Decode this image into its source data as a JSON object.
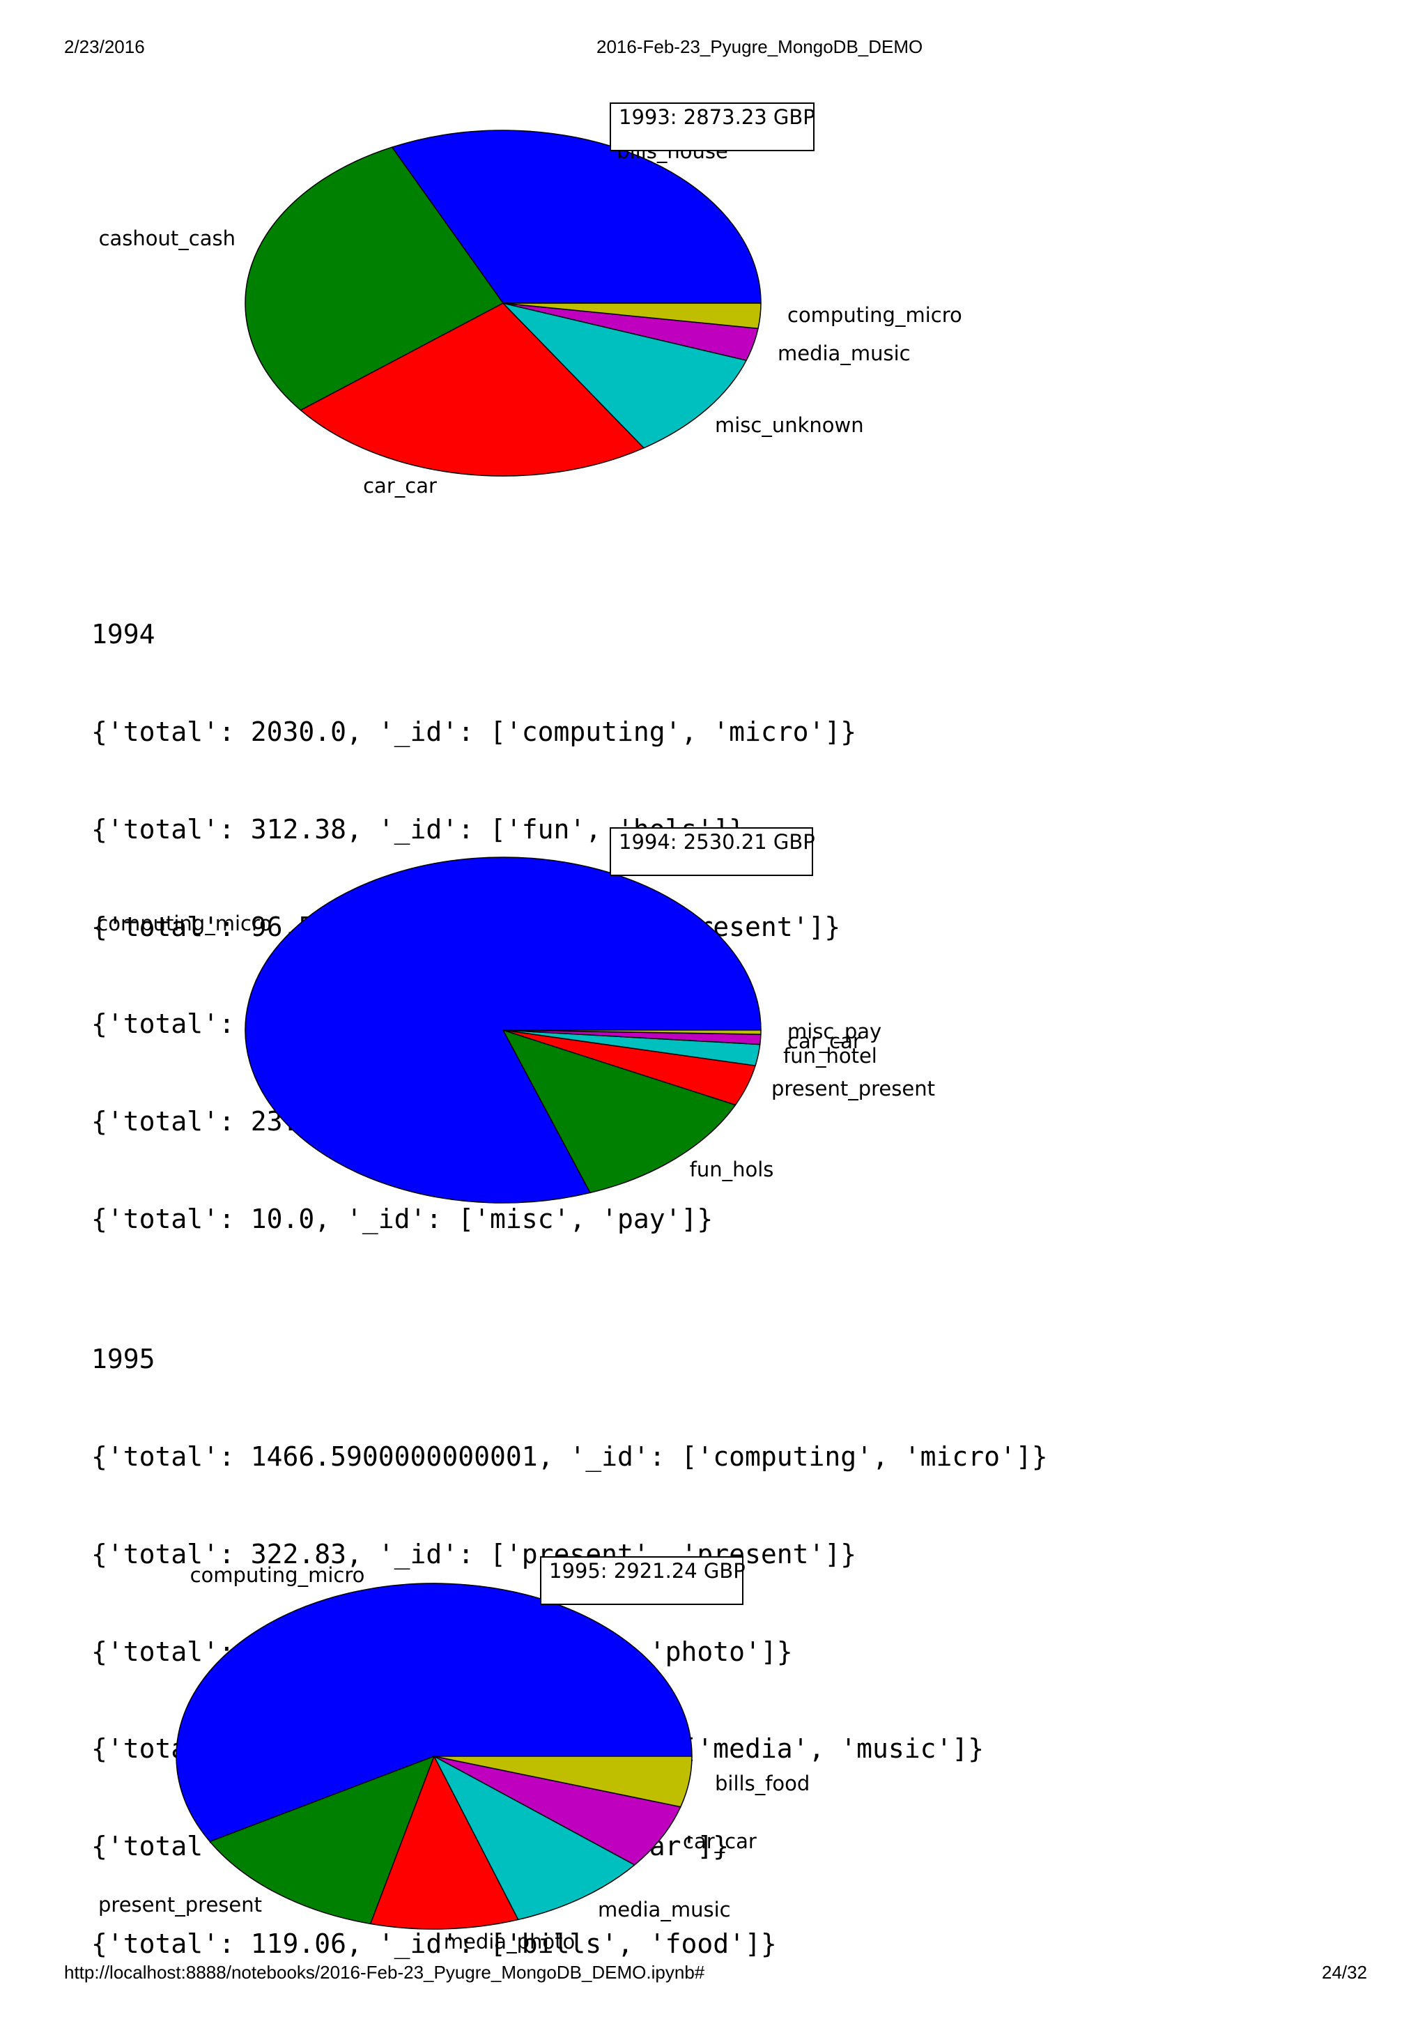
{
  "header": {
    "date": "2/23/2016",
    "title": "2016-Feb-23_Pyugre_MongoDB_DEMO"
  },
  "footer": {
    "url": "http://localhost:8888/notebooks/2016-Feb-23_Pyugre_MongoDB_DEMO.ipynb#",
    "page": "24/32"
  },
  "outputs": [
    {
      "year": "1994",
      "lines": [
        "{'total': 2030.0, '_id': ['computing', 'micro']}",
        "{'total': 312.38, '_id': ['fun', 'hols']}",
        "{'total': 96.55, '_id': ['present', 'present']}",
        "{'total': 49.91, '_id': ['fun', 'hotel']}",
        "{'total': 23.33, '_id': ['car', 'car']}",
        "{'total': 10.0, '_id': ['misc', 'pay']}"
      ]
    },
    {
      "year": "1995",
      "lines": [
        "{'total': 1466.5900000000001, '_id': ['computing', 'micro']}",
        "{'total': 322.83, '_id': ['present', 'present']}",
        "{'total': 233.29, '_id': ['media', 'photo']}",
        "{'total': 223.98000000000002, '_id': ['media', 'music']}",
        "{'total': 153.43, '_id': ['car', 'car']}",
        "{'total': 119.06, '_id': ['bills', 'food']}"
      ]
    }
  ],
  "chart_data": [
    {
      "type": "pie",
      "title": "1993: 2873.23 GBP",
      "categories": [
        "bills_house",
        "cashout_cash",
        "car_car",
        "misc_unknown",
        "media_music",
        "computing_micro"
      ],
      "values": [
        922.0,
        820.0,
        677.0,
        300.0,
        87.0,
        67.23
      ],
      "colors": [
        "#0000ff",
        "#008000",
        "#ff0000",
        "#00bfbf",
        "#bf00bf",
        "#bfbf00"
      ]
    },
    {
      "type": "pie",
      "title": "1994: 2530.21 GBP",
      "categories": [
        "computing_micro",
        "fun_hols",
        "present_present",
        "fun_hotel",
        "car_car",
        "misc_pay"
      ],
      "values": [
        2030.0,
        312.38,
        96.55,
        49.91,
        23.33,
        10.0
      ],
      "colors": [
        "#0000ff",
        "#008000",
        "#ff0000",
        "#00bfbf",
        "#bf00bf",
        "#bfbf00"
      ]
    },
    {
      "type": "pie",
      "title": "1995: 2921.24 GBP",
      "categories": [
        "computing_micro",
        "present_present",
        "media_photo",
        "media_music",
        "car_car",
        "bills_food"
      ],
      "values": [
        1466.59,
        322.83,
        233.29,
        223.98,
        153.43,
        119.06
      ],
      "colors": [
        "#0000ff",
        "#008000",
        "#ff0000",
        "#00bfbf",
        "#bf00bf",
        "#bfbf00"
      ]
    }
  ]
}
